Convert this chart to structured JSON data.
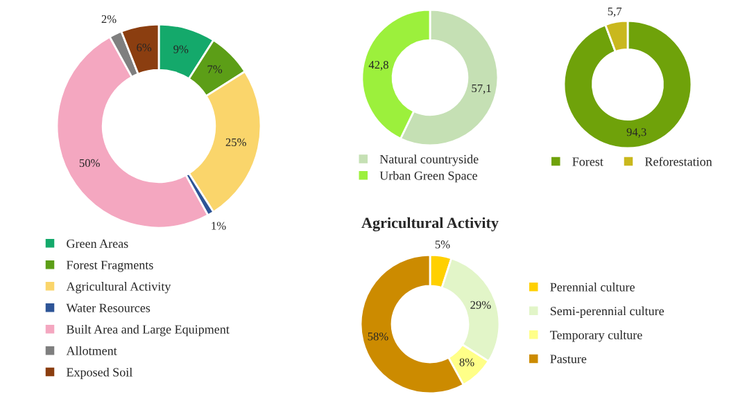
{
  "chart_data": [
    {
      "type": "donut",
      "categories": [
        "Green Areas",
        "Forest Fragments",
        "Agricultural Activity",
        "Water Resources",
        "Built Area and Large Equipment",
        "Allotment",
        "Exposed Soil"
      ],
      "values": [
        9,
        7,
        25,
        1,
        50,
        2,
        6
      ],
      "value_labels": [
        "9%",
        "7%",
        "25%",
        "1%",
        "50%",
        "2%",
        "6%"
      ],
      "colors": [
        "#14a96b",
        "#5c9e17",
        "#fad56b",
        "#2e5597",
        "#f4a7c0",
        "#7f7f7f",
        "#8b3e10"
      ],
      "legend": "bottom"
    },
    {
      "type": "donut",
      "categories": [
        "Natural countryside",
        "Urban Green Space"
      ],
      "values": [
        57.1,
        42.8
      ],
      "value_labels": [
        "57,1",
        "42,8"
      ],
      "colors": [
        "#c5e0b4",
        "#9cf03c"
      ],
      "legend": "bottom"
    },
    {
      "type": "donut",
      "categories": [
        "Forest",
        "Reforestation"
      ],
      "values": [
        94.3,
        5.7
      ],
      "value_labels": [
        "94,3",
        "5,7"
      ],
      "colors": [
        "#6fa20a",
        "#c9b81e"
      ],
      "legend": "bottom"
    },
    {
      "type": "donut",
      "title": "Agricultural Activity",
      "categories": [
        "Perennial culture",
        "Semi-perennial culture",
        "Temporary culture",
        "Pasture"
      ],
      "values": [
        5,
        29,
        8,
        58
      ],
      "value_labels": [
        "5%",
        "29%",
        "8%",
        "58%"
      ],
      "colors": [
        "#ffd000",
        "#e2f5c8",
        "#ffff88",
        "#cc8b00"
      ],
      "legend": "right"
    }
  ]
}
